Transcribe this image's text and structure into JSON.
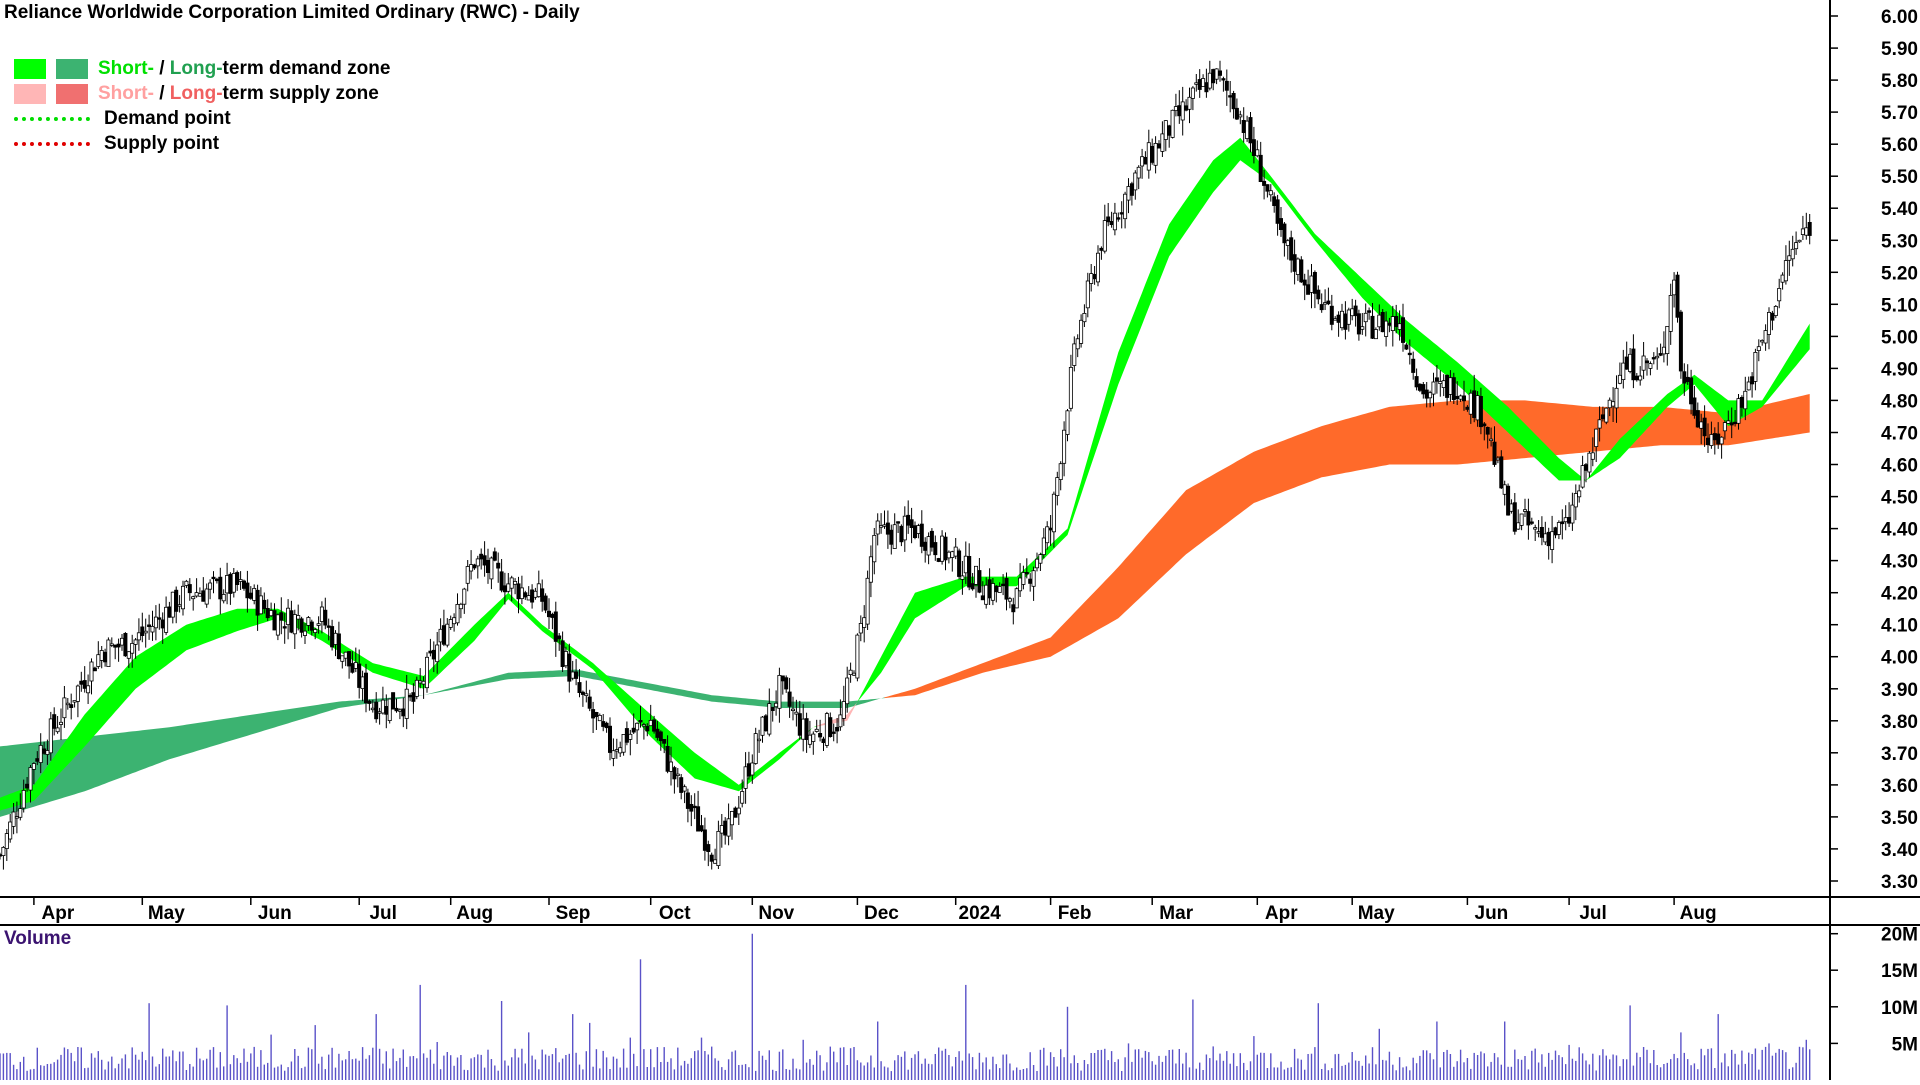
{
  "title": "Reliance Worldwide Corporation Limited Ordinary (RWC) - Daily",
  "legend": {
    "demand_zone": {
      "short_label": "Short-",
      "sep": " / ",
      "long_label": "Long-",
      "rest": "term demand zone",
      "short_color": "#00ff00",
      "long_color": "#3cb371"
    },
    "supply_zone": {
      "short_label": "Short-",
      "sep": " / ",
      "long_label": "Long-",
      "rest": "term supply zone",
      "short_color": "#ffb3b3",
      "long_color": "#f08080"
    },
    "demand_point": {
      "label": "Demand point",
      "color": "#00dd00"
    },
    "supply_point": {
      "label": "Supply point",
      "color": "#e00000"
    }
  },
  "volume_label": "Volume",
  "colors": {
    "demand_short": "#00ff00",
    "demand_long": "#3cb371",
    "supply_short": "#ffb6b6",
    "supply_long": "#ff6a2a",
    "candle": "#000000",
    "volume": "#5a52c8",
    "axis": "#000000"
  },
  "chart_data": {
    "type": "candlestick",
    "title": "Reliance Worldwide Corporation Limited Ordinary (RWC) - Daily",
    "x_labels": [
      "Apr",
      "May",
      "Jun",
      "Jul",
      "Aug",
      "Sep",
      "Oct",
      "Nov",
      "Dec",
      "2024",
      "Feb",
      "Mar",
      "Apr",
      "May",
      "Jun",
      "Jul",
      "Aug"
    ],
    "y_ticks": [
      "3.30",
      "3.40",
      "3.50",
      "3.60",
      "3.70",
      "3.80",
      "3.90",
      "4.00",
      "4.10",
      "4.20",
      "4.30",
      "4.40",
      "4.50",
      "4.60",
      "4.70",
      "4.80",
      "4.90",
      "5.00",
      "5.10",
      "5.20",
      "5.30",
      "5.40",
      "5.50",
      "5.60",
      "5.70",
      "5.80",
      "5.90",
      "6.00"
    ],
    "ylim": [
      3.25,
      6.05
    ],
    "x_count": 500,
    "x_month_index": [
      10,
      42,
      74,
      106,
      133,
      162,
      192,
      222,
      253,
      282,
      310,
      340,
      371,
      399,
      433,
      463,
      494
    ],
    "close_points": [
      [
        0,
        3.38
      ],
      [
        10,
        3.68
      ],
      [
        30,
        4.02
      ],
      [
        40,
        4.05
      ],
      [
        55,
        4.2
      ],
      [
        70,
        4.22
      ],
      [
        82,
        4.12
      ],
      [
        95,
        4.12
      ],
      [
        110,
        3.85
      ],
      [
        122,
        3.86
      ],
      [
        140,
        4.3
      ],
      [
        150,
        4.23
      ],
      [
        160,
        4.18
      ],
      [
        170,
        3.9
      ],
      [
        180,
        3.72
      ],
      [
        192,
        3.8
      ],
      [
        200,
        3.6
      ],
      [
        210,
        3.4
      ],
      [
        215,
        3.45
      ],
      [
        222,
        3.7
      ],
      [
        230,
        3.9
      ],
      [
        238,
        3.75
      ],
      [
        248,
        3.8
      ],
      [
        254,
        4.08
      ],
      [
        258,
        4.38
      ],
      [
        270,
        4.4
      ],
      [
        282,
        4.3
      ],
      [
        290,
        4.22
      ],
      [
        300,
        4.18
      ],
      [
        310,
        4.4
      ],
      [
        315,
        4.8
      ],
      [
        318,
        5.0
      ],
      [
        325,
        5.3
      ],
      [
        335,
        5.5
      ],
      [
        345,
        5.65
      ],
      [
        358,
        5.82
      ],
      [
        365,
        5.72
      ],
      [
        372,
        5.52
      ],
      [
        378,
        5.3
      ],
      [
        390,
        5.1
      ],
      [
        402,
        5.03
      ],
      [
        413,
        5.05
      ],
      [
        420,
        4.82
      ],
      [
        430,
        4.85
      ],
      [
        438,
        4.75
      ],
      [
        445,
        4.45
      ],
      [
        455,
        4.38
      ],
      [
        462,
        4.4
      ],
      [
        470,
        4.65
      ],
      [
        478,
        4.9
      ],
      [
        490,
        4.92
      ],
      [
        494,
        5.2
      ],
      [
        496,
        4.9
      ],
      [
        505,
        4.65
      ],
      [
        515,
        4.82
      ],
      [
        522,
        5.05
      ],
      [
        528,
        5.25
      ],
      [
        534,
        5.35
      ]
    ],
    "short_term_zone": [
      [
        0,
        3.56,
        3.52
      ],
      [
        10,
        3.6,
        3.55
      ],
      [
        25,
        3.82,
        3.72
      ],
      [
        40,
        4.0,
        3.9
      ],
      [
        55,
        4.1,
        4.02
      ],
      [
        70,
        4.15,
        4.08
      ],
      [
        82,
        4.15,
        4.12
      ],
      [
        95,
        4.08,
        4.05
      ],
      [
        110,
        3.98,
        3.95
      ],
      [
        125,
        3.94,
        3.9
      ],
      [
        140,
        4.1,
        4.05
      ],
      [
        150,
        4.2,
        4.18
      ],
      [
        160,
        4.1,
        4.08
      ],
      [
        175,
        3.98,
        3.96
      ],
      [
        192,
        3.82,
        3.75
      ],
      [
        205,
        3.7,
        3.62
      ],
      [
        218,
        3.6,
        3.58
      ],
      [
        230,
        3.7,
        3.68
      ],
      [
        240,
        3.78,
        3.78
      ],
      [
        250,
        3.8,
        3.82
      ],
      [
        260,
        4.0,
        3.95
      ],
      [
        270,
        4.2,
        4.12
      ],
      [
        285,
        4.25,
        4.22
      ],
      [
        300,
        4.25,
        4.22
      ],
      [
        315,
        4.4,
        4.38
      ],
      [
        330,
        4.95,
        4.85
      ],
      [
        345,
        5.35,
        5.25
      ],
      [
        358,
        5.55,
        5.45
      ],
      [
        366,
        5.62,
        5.55
      ],
      [
        375,
        5.5,
        5.48
      ],
      [
        388,
        5.32,
        5.3
      ],
      [
        402,
        5.18,
        5.12
      ],
      [
        415,
        5.05,
        4.98
      ],
      [
        430,
        4.92,
        4.85
      ],
      [
        445,
        4.78,
        4.7
      ],
      [
        460,
        4.62,
        4.55
      ],
      [
        468,
        4.55,
        4.55
      ],
      [
        478,
        4.68,
        4.62
      ],
      [
        492,
        4.82,
        4.78
      ],
      [
        500,
        4.88,
        4.85
      ],
      [
        510,
        4.8,
        4.72
      ],
      [
        520,
        4.8,
        4.78
      ],
      [
        534,
        5.04,
        4.96
      ]
    ],
    "long_term_zone": [
      [
        0,
        3.72,
        3.5
      ],
      [
        25,
        3.75,
        3.58
      ],
      [
        50,
        3.78,
        3.68
      ],
      [
        75,
        3.82,
        3.76
      ],
      [
        100,
        3.86,
        3.84
      ],
      [
        125,
        3.88,
        3.88
      ],
      [
        150,
        3.95,
        3.93
      ],
      [
        170,
        3.96,
        3.94
      ],
      [
        190,
        3.92,
        3.9
      ],
      [
        210,
        3.88,
        3.86
      ],
      [
        230,
        3.86,
        3.84
      ],
      [
        250,
        3.86,
        3.84
      ],
      [
        270,
        3.88,
        3.9
      ],
      [
        290,
        3.95,
        3.98
      ],
      [
        310,
        4.0,
        4.06
      ],
      [
        330,
        4.12,
        4.28
      ],
      [
        350,
        4.32,
        4.52
      ],
      [
        370,
        4.48,
        4.64
      ],
      [
        390,
        4.56,
        4.72
      ],
      [
        410,
        4.6,
        4.78
      ],
      [
        430,
        4.6,
        4.8
      ],
      [
        450,
        4.62,
        4.8
      ],
      [
        470,
        4.64,
        4.78
      ],
      [
        490,
        4.66,
        4.78
      ],
      [
        510,
        4.66,
        4.76
      ],
      [
        534,
        4.7,
        4.82
      ]
    ],
    "volume": {
      "unit": "M",
      "y_ticks": [
        "5M",
        "10M",
        "15M",
        "20M"
      ],
      "ylim": [
        0,
        20.5
      ],
      "spikes": [
        [
          100,
          3.5
        ],
        [
          120,
          10.5
        ],
        [
          180,
          10.2
        ],
        [
          215,
          6.2
        ],
        [
          250,
          7.5
        ],
        [
          290,
          4.5
        ],
        [
          300,
          9
        ],
        [
          335,
          13
        ],
        [
          347,
          5.2
        ],
        [
          400,
          10.8
        ],
        [
          420,
          6.5
        ],
        [
          455,
          9
        ],
        [
          470,
          7.8
        ],
        [
          503,
          5.8
        ],
        [
          510,
          16.5
        ],
        [
          530,
          4.5
        ],
        [
          560,
          5.8
        ],
        [
          600,
          20
        ],
        [
          640,
          5.5
        ],
        [
          700,
          8
        ],
        [
          750,
          4
        ],
        [
          770,
          13
        ],
        [
          850,
          10
        ],
        [
          900,
          5
        ],
        [
          950,
          11
        ],
        [
          1000,
          6
        ],
        [
          1050,
          10.5
        ],
        [
          1100,
          7
        ],
        [
          1145,
          8
        ],
        [
          1200,
          8
        ],
        [
          1250,
          4.8
        ],
        [
          1300,
          10.2
        ],
        [
          1340,
          6.5
        ],
        [
          1370,
          9
        ],
        [
          1410,
          5
        ],
        [
          1440,
          5.5
        ]
      ]
    }
  }
}
